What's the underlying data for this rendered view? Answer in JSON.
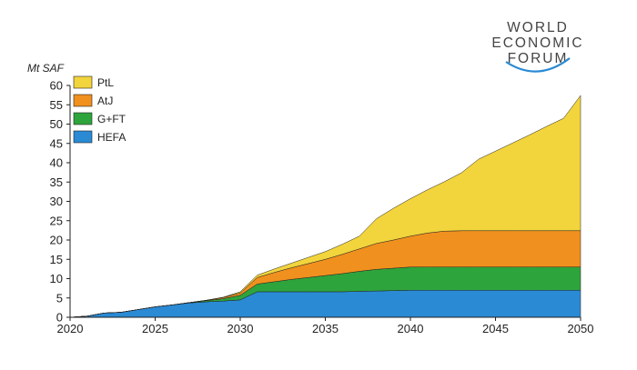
{
  "logo": {
    "lines": [
      "WORLD",
      "ECONOMIC",
      "FORUM"
    ]
  },
  "chart_data": {
    "type": "area",
    "stacked": true,
    "title": "",
    "xlabel": "",
    "ylabel": "Mt SAF",
    "xlim": [
      2020,
      2050
    ],
    "ylim": [
      0,
      60
    ],
    "xticks": [
      2020,
      2025,
      2030,
      2035,
      2040,
      2045,
      2050
    ],
    "yticks": [
      0,
      5,
      10,
      15,
      20,
      25,
      30,
      35,
      40,
      45,
      50,
      55,
      60
    ],
    "grid": false,
    "legend_position": "top-left",
    "legend_order": [
      "PtL",
      "AtJ",
      "G+FT",
      "HEFA"
    ],
    "x": [
      2020,
      2021,
      2022,
      2023,
      2024,
      2025,
      2026,
      2027,
      2028,
      2029,
      2030,
      2031,
      2032,
      2033,
      2034,
      2035,
      2036,
      2037,
      2038,
      2039,
      2040,
      2041,
      2042,
      2043,
      2044,
      2045,
      2046,
      2047,
      2048,
      2049,
      2050
    ],
    "series": [
      {
        "name": "HEFA",
        "color": "#2a8ad4",
        "values": [
          0,
          0.3,
          1.1,
          1.3,
          2.0,
          2.7,
          3.2,
          3.7,
          4.0,
          4.2,
          4.5,
          6.6,
          6.6,
          6.6,
          6.6,
          6.6,
          6.6,
          6.7,
          6.8,
          6.9,
          7.0,
          7.0,
          7.0,
          7.0,
          7.0,
          7.0,
          7.0,
          7.0,
          7.0,
          7.0,
          7.0
        ]
      },
      {
        "name": "G+FT",
        "color": "#2ea43c",
        "values": [
          0,
          0,
          0,
          0,
          0,
          0,
          0,
          0.1,
          0.3,
          0.6,
          1.2,
          2.0,
          2.6,
          3.2,
          3.7,
          4.2,
          4.7,
          5.2,
          5.6,
          5.8,
          6.0,
          6.0,
          6.0,
          6.0,
          6.0,
          6.0,
          6.0,
          6.0,
          6.0,
          6.0,
          6.0
        ]
      },
      {
        "name": "AtJ",
        "color": "#f0901e",
        "values": [
          0,
          0,
          0,
          0,
          0,
          0,
          0,
          0,
          0.1,
          0.3,
          0.6,
          1.7,
          2.4,
          3.0,
          3.6,
          4.2,
          5.0,
          5.8,
          6.7,
          7.3,
          8.0,
          8.8,
          9.3,
          9.4,
          9.4,
          9.4,
          9.4,
          9.4,
          9.4,
          9.4,
          9.4
        ]
      },
      {
        "name": "PtL",
        "color": "#f2d43c",
        "values": [
          0,
          0,
          0,
          0,
          0,
          0,
          0,
          0,
          0,
          0.1,
          0.3,
          0.6,
          0.9,
          1.2,
          1.6,
          2.0,
          2.6,
          3.3,
          6.4,
          8.2,
          9.7,
          11.2,
          12.8,
          15.0,
          18.5,
          20.6,
          22.7,
          24.8,
          27.0,
          29.1,
          35.0
        ]
      }
    ]
  }
}
